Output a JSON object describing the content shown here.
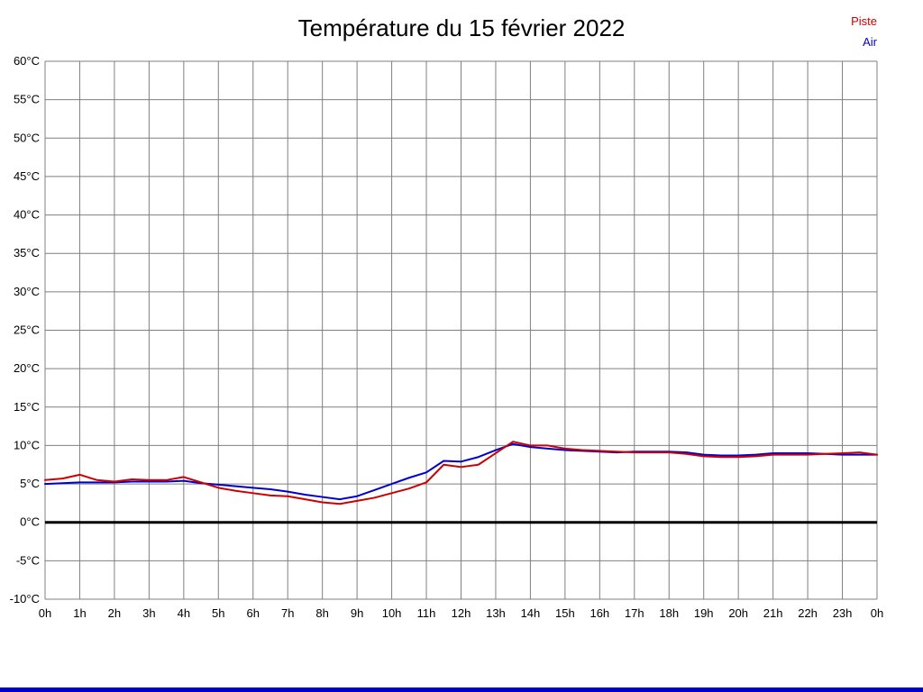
{
  "title": "Température du 15 février 2022",
  "colors": {
    "piste": "#cc0000",
    "air": "#0000cc",
    "grid": "#7f7f7f",
    "zero_line": "#000000",
    "footer_bar": "#0000cc",
    "text": "#000000"
  },
  "chart_data": {
    "type": "line",
    "title": "Température du 15 février 2022",
    "xlabel": "",
    "ylabel": "",
    "xlim": [
      0,
      24
    ],
    "ylim": [
      -10,
      60
    ],
    "grid": true,
    "legend_position": "top-right",
    "y_ticks": [
      60,
      55,
      50,
      45,
      40,
      35,
      30,
      25,
      20,
      15,
      10,
      5,
      0,
      -5,
      -10
    ],
    "y_tick_labels": [
      "60°C",
      "55°C",
      "50°C",
      "45°C",
      "40°C",
      "35°C",
      "30°C",
      "25°C",
      "20°C",
      "15°C",
      "10°C",
      "5°C",
      "0°C",
      "-5°C",
      "-10°C"
    ],
    "x_tick_values": [
      0,
      1,
      2,
      3,
      4,
      5,
      6,
      7,
      8,
      9,
      10,
      11,
      12,
      13,
      14,
      15,
      16,
      17,
      18,
      19,
      20,
      21,
      22,
      23,
      24
    ],
    "x_tick_labels": [
      "0h",
      "1h",
      "2h",
      "3h",
      "4h",
      "5h",
      "6h",
      "7h",
      "8h",
      "9h",
      "10h",
      "11h",
      "12h",
      "13h",
      "14h",
      "15h",
      "16h",
      "17h",
      "18h",
      "19h",
      "20h",
      "21h",
      "22h",
      "23h",
      "0h"
    ],
    "x": [
      0,
      0.5,
      1,
      1.5,
      2,
      2.5,
      3,
      3.5,
      4,
      4.5,
      5,
      5.5,
      6,
      6.5,
      7,
      7.5,
      8,
      8.5,
      9,
      9.5,
      10,
      10.5,
      11,
      11.5,
      12,
      12.5,
      13,
      13.5,
      14,
      14.5,
      15,
      15.5,
      16,
      16.5,
      17,
      17.5,
      18,
      18.5,
      19,
      19.5,
      20,
      20.5,
      21,
      21.5,
      22,
      22.5,
      23,
      23.5,
      24
    ],
    "series": [
      {
        "name": "Piste",
        "color": "#cc0000",
        "values": [
          5.5,
          5.7,
          6.2,
          5.5,
          5.3,
          5.6,
          5.5,
          5.5,
          5.9,
          5.2,
          4.5,
          4.1,
          3.8,
          3.5,
          3.4,
          3.0,
          2.6,
          2.4,
          2.8,
          3.2,
          3.8,
          4.4,
          5.2,
          7.5,
          7.2,
          7.5,
          9.0,
          10.5,
          10.0,
          10.0,
          9.6,
          9.4,
          9.3,
          9.2,
          9.1,
          9.1,
          9.1,
          8.9,
          8.6,
          8.5,
          8.5,
          8.6,
          8.8,
          8.8,
          8.8,
          8.9,
          9.0,
          9.1,
          8.8
        ]
      },
      {
        "name": "Air",
        "color": "#0000cc",
        "values": [
          5.0,
          5.1,
          5.2,
          5.2,
          5.2,
          5.3,
          5.3,
          5.3,
          5.4,
          5.1,
          4.9,
          4.7,
          4.5,
          4.3,
          4.0,
          3.6,
          3.3,
          3.0,
          3.4,
          4.2,
          5.0,
          5.8,
          6.5,
          8.0,
          7.9,
          8.5,
          9.4,
          10.2,
          9.8,
          9.6,
          9.4,
          9.3,
          9.2,
          9.1,
          9.2,
          9.2,
          9.2,
          9.1,
          8.8,
          8.7,
          8.7,
          8.8,
          9.0,
          9.0,
          9.0,
          8.9,
          8.8,
          8.8,
          8.8
        ]
      }
    ],
    "zero_line": true
  }
}
